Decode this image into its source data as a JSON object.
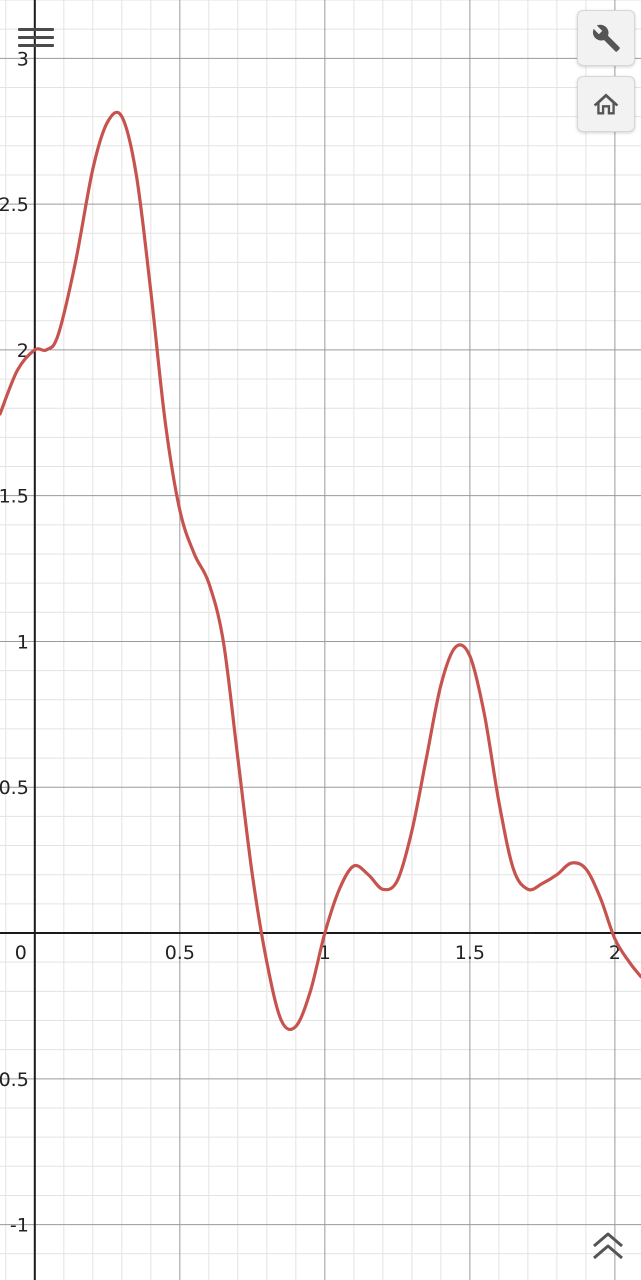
{
  "graph": {
    "x_ticks": [
      {
        "value": 0,
        "label": "0"
      },
      {
        "value": 0.5,
        "label": "0.5"
      },
      {
        "value": 1,
        "label": "1"
      },
      {
        "value": 1.5,
        "label": "1.5"
      },
      {
        "value": 2,
        "label": "2"
      }
    ],
    "y_ticks": [
      {
        "value": 3,
        "label": "3"
      },
      {
        "value": 2.5,
        "label": "2.5"
      },
      {
        "value": 2,
        "label": "2"
      },
      {
        "value": 1.5,
        "label": "1.5"
      },
      {
        "value": 1,
        "label": "1"
      },
      {
        "value": 0.5,
        "label": "0.5"
      },
      {
        "value": -0.5,
        "label": "-0.5"
      },
      {
        "value": -1,
        "label": "-1"
      }
    ],
    "x_range": [
      -0.12,
      2.09
    ],
    "y_range": [
      -1.19,
      3.2
    ],
    "curve_color": "#c7534f",
    "curve_points": [
      [
        -0.12,
        1.78
      ],
      [
        -0.06,
        1.93
      ],
      [
        0,
        2.0
      ],
      [
        0.04,
        2.0
      ],
      [
        0.08,
        2.05
      ],
      [
        0.14,
        2.3
      ],
      [
        0.2,
        2.62
      ],
      [
        0.25,
        2.78
      ],
      [
        0.3,
        2.8
      ],
      [
        0.35,
        2.6
      ],
      [
        0.4,
        2.2
      ],
      [
        0.45,
        1.75
      ],
      [
        0.5,
        1.45
      ],
      [
        0.55,
        1.3
      ],
      [
        0.6,
        1.2
      ],
      [
        0.65,
        1.0
      ],
      [
        0.7,
        0.6
      ],
      [
        0.75,
        0.2
      ],
      [
        0.8,
        -0.1
      ],
      [
        0.85,
        -0.3
      ],
      [
        0.9,
        -0.32
      ],
      [
        0.95,
        -0.2
      ],
      [
        1.0,
        0.0
      ],
      [
        1.05,
        0.15
      ],
      [
        1.1,
        0.23
      ],
      [
        1.15,
        0.2
      ],
      [
        1.2,
        0.15
      ],
      [
        1.25,
        0.18
      ],
      [
        1.3,
        0.35
      ],
      [
        1.35,
        0.6
      ],
      [
        1.4,
        0.85
      ],
      [
        1.45,
        0.98
      ],
      [
        1.5,
        0.95
      ],
      [
        1.55,
        0.75
      ],
      [
        1.6,
        0.45
      ],
      [
        1.65,
        0.22
      ],
      [
        1.7,
        0.15
      ],
      [
        1.75,
        0.17
      ],
      [
        1.8,
        0.2
      ],
      [
        1.85,
        0.24
      ],
      [
        1.9,
        0.22
      ],
      [
        1.95,
        0.12
      ],
      [
        2.0,
        -0.02
      ],
      [
        2.05,
        -0.1
      ],
      [
        2.09,
        -0.15
      ]
    ]
  },
  "toolbar": {
    "settings_icon": "wrench-icon",
    "home_icon": "home-icon",
    "menu_icon": "hamburger-menu-icon",
    "collapse_icon": "double-chevron-up-icon"
  }
}
